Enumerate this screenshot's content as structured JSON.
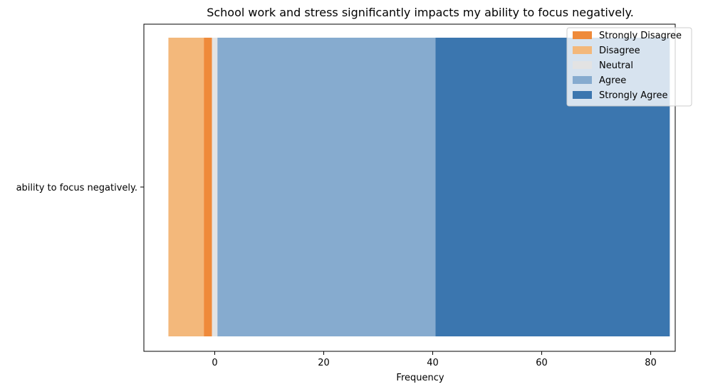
{
  "chart_data": {
    "type": "bar",
    "orientation": "horizontal",
    "stacked": "diverging",
    "title": "School work and stress significantly impacts my ability to focus negatively.",
    "xlabel": "Frequency",
    "ylabel": "",
    "xlim": [
      -13,
      84.5
    ],
    "x_ticks": [
      0,
      20,
      40,
      60,
      80
    ],
    "categories": [
      "ability to focus negatively."
    ],
    "grid": false,
    "legend_position": "top-right",
    "series": [
      {
        "name": "Strongly Disagree",
        "color": "#ef8a3a",
        "start": -2.0,
        "end": -0.5
      },
      {
        "name": "Disagree",
        "color": "#f3b87b",
        "start": -8.5,
        "end": -2.0
      },
      {
        "name": "Neutral",
        "color": "#e3e3e3",
        "start": -0.5,
        "end": 0.5
      },
      {
        "name": "Agree",
        "color": "#86abcf",
        "start": 0.5,
        "end": 40.5
      },
      {
        "name": "Strongly Agree",
        "color": "#3b76af",
        "start": 40.5,
        "end": 83.5
      }
    ]
  }
}
